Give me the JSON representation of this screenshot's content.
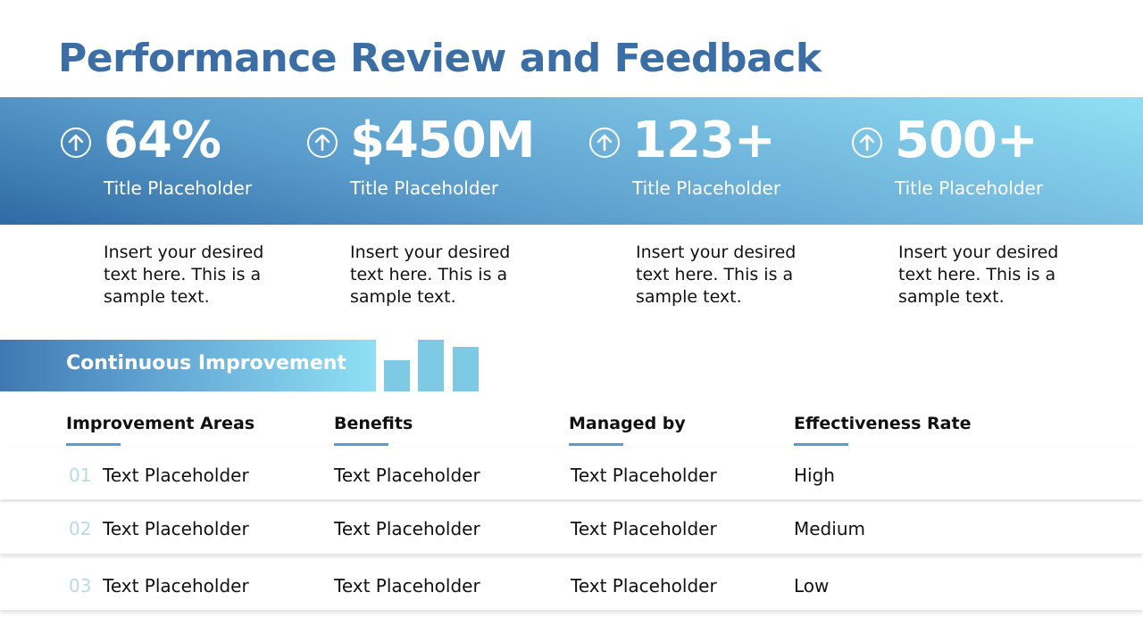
{
  "title": "Performance Review and Feedback",
  "kpis": [
    {
      "value": "64%",
      "label": "Title Placeholder",
      "description": "Insert your desired text here. This is a sample text."
    },
    {
      "value": "$450M",
      "label": "Title Placeholder",
      "description": "Insert your desired text here. This is a sample text."
    },
    {
      "value": "123+",
      "label": "Title Placeholder",
      "description": "Insert your desired text here. This is a sample text."
    },
    {
      "value": "500+",
      "label": "Title Placeholder",
      "description": "Insert your desired text here. This is a sample text."
    }
  ],
  "kpi_icon": "arrow-up-circle-icon",
  "section": {
    "title": "Continuous Improvement",
    "icon": "bar-chart-icon"
  },
  "table": {
    "headers": [
      "Improvement  Areas",
      "Benefits",
      "Managed  by",
      "Effectiveness  Rate"
    ],
    "rows": [
      {
        "num": "01",
        "area": "Text Placeholder",
        "benefits": "Text Placeholder",
        "managed_by": "Text Placeholder",
        "rate": "High"
      },
      {
        "num": "02",
        "area": "Text Placeholder",
        "benefits": "Text Placeholder",
        "managed_by": "Text Placeholder",
        "rate": "Medium"
      },
      {
        "num": "03",
        "area": "Text Placeholder",
        "benefits": "Text Placeholder",
        "managed_by": "Text Placeholder",
        "rate": "Low"
      }
    ]
  },
  "colors": {
    "title": "#3a6ea5",
    "gradient_dark": "#2f6aa3",
    "gradient_light": "#8fe0f4",
    "bar": "#7ecae5",
    "row_number": "#b9d8ea"
  }
}
